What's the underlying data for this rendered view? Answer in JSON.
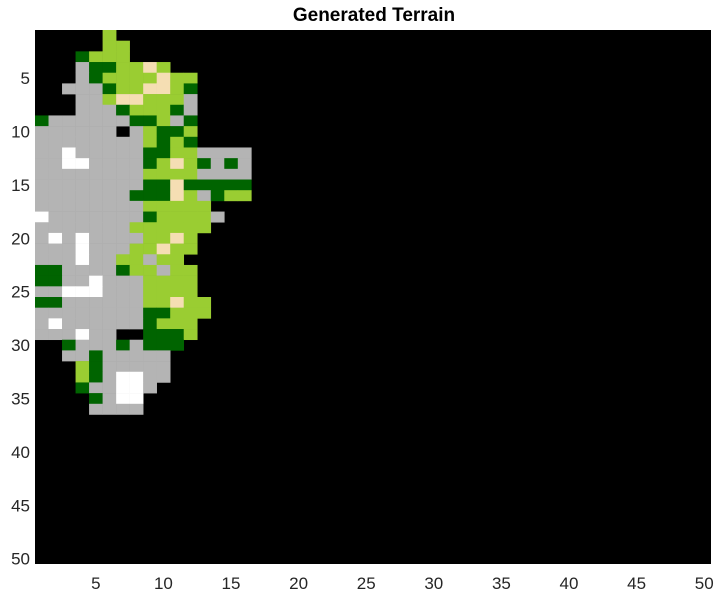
{
  "chart_data": {
    "type": "heatmap",
    "title": "Generated Terrain",
    "xlabel": "",
    "ylabel": "",
    "xlim": [
      0.5,
      50.5
    ],
    "ylim": [
      0.5,
      50.5
    ],
    "y_direction": "reversed",
    "xticks": [
      5,
      10,
      15,
      20,
      25,
      30,
      35,
      40,
      45,
      50
    ],
    "yticks": [
      5,
      10,
      15,
      20,
      25,
      30,
      35,
      40,
      45,
      50
    ],
    "grid": false,
    "legend": "none",
    "rows": 50,
    "cols": 50,
    "background_class": "water",
    "classes": {
      "water": "#000000",
      "forest": "#006400",
      "grassland": "#9ACD32",
      "sand": "#F5DEB3",
      "rock": "#B4B4B4",
      "snow": "#FFFFFF"
    },
    "class_codes": {
      ".": "water",
      "F": "forest",
      "G": "grassland",
      "S": "sand",
      "R": "rock",
      "W": "snow"
    },
    "grid_rows": [
      ".....G..........",
      ".....GG.........",
      "...FGGG.........",
      "...RFFGGSG......",
      "...RFGGGGSGG....",
      "..RRRFGGSSGF....",
      "...RRGSSGGGR....",
      "...RRRFGGGFR....",
      "FRRRRRRFFGRF....",
      "RRRRRR.RGFFG....",
      "RRRRRRRRGFGF....",
      "RRWRRRRRFFGGRRRR",
      "RRWWRRRRFGSGFRFR",
      "RRRRRRRRGGGGRRRR",
      "RRRRRRRRFFSFFFFF",
      "RRRRRRRFFFSGRFGG",
      "RRRRRRRRGGGGG...",
      "WRRRRRRRFGGGGR..",
      "RRRRRRRGGGGGG...",
      "RWRWRRRRGGSG....",
      "RRRWRRRGGSGG....",
      "RRRWRRGGRGG.....",
      "FFRRRRFGGRGG....",
      "FFRRWRRRGGGG....",
      "RRWWWRRRGGGG....",
      "FFRRRRRRGGSGG...",
      "RRRRRRRRFFGGG...",
      "RWRRRRRRFGGG....",
      "RRRWRR..FFFG....",
      "..FRRRFRFFF.....",
      "..RRFRRRRR......",
      "...GFRRRRR......",
      "...GFRWWRR......",
      "...FRRWWR.......",
      "....FRWW........",
      "....RRRR........"
    ]
  }
}
